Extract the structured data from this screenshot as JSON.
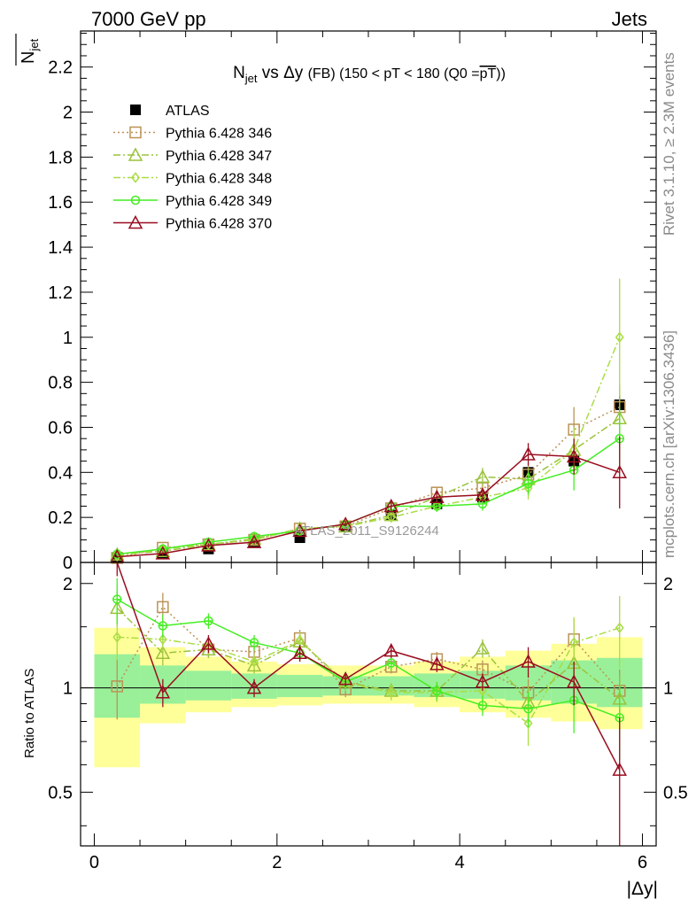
{
  "header": {
    "left": "7000 GeV pp",
    "right": "Jets"
  },
  "side_labels": {
    "rivet": "Rivet 3.1.10, ≥ 2.3M events",
    "mcplots": "mcplots.cern.ch [arXiv:1306.3436]"
  },
  "watermark": "ATLAS_2011_S9126244",
  "chart_data": [
    {
      "type": "scatter",
      "panel": "main",
      "title": {
        "prefix": "N",
        "prefix_sub": "jet",
        "middle": " vs Δy ",
        "tag": "(FB)",
        "rest": " (150 < pT < 180 (Q0 =",
        "overline": "pT",
        "close": "))"
      },
      "ylabel": "N",
      "ylabel_sub": "jet",
      "xlim": [
        -0.15,
        6.15
      ],
      "ylim": [
        0,
        2.36
      ],
      "yticks": [
        {
          "v": 0,
          "label": "0"
        },
        {
          "v": 0.2,
          "label": "0.2"
        },
        {
          "v": 0.4,
          "label": "0.4"
        },
        {
          "v": 0.6,
          "label": "0.6"
        },
        {
          "v": 0.8,
          "label": "0.8"
        },
        {
          "v": 1.0,
          "label": "1"
        },
        {
          "v": 1.2,
          "label": "1.2"
        },
        {
          "v": 1.4,
          "label": "1.4"
        },
        {
          "v": 1.6,
          "label": "1.6"
        },
        {
          "v": 1.8,
          "label": "1.8"
        },
        {
          "v": 2.0,
          "label": "2"
        },
        {
          "v": 2.2,
          "label": "2.2"
        }
      ],
      "legend_position": "top-left",
      "x": [
        0.25,
        0.75,
        1.25,
        1.75,
        2.25,
        2.75,
        3.25,
        3.75,
        4.25,
        4.75,
        5.25,
        5.75
      ],
      "series": [
        {
          "name": "ATLAS",
          "color": "#000000",
          "marker": "filled-square",
          "line": "none",
          "values": [
            0.02,
            0.04,
            0.06,
            0.09,
            0.11,
            0.16,
            0.21,
            0.26,
            0.29,
            0.4,
            0.45,
            0.7
          ],
          "errors": [
            0.003,
            0.004,
            0.005,
            0.006,
            0.008,
            0.01,
            0.012,
            0.015,
            0.02,
            0.025,
            0.03,
            0.05
          ]
        },
        {
          "name": "Pythia 6.428 346",
          "color": "#bb9355",
          "marker": "open-square",
          "line": "dotted",
          "values": [
            0.02,
            0.065,
            0.08,
            0.1,
            0.15,
            0.16,
            0.24,
            0.31,
            0.33,
            0.39,
            0.59,
            0.69
          ],
          "errors": [
            0.005,
            0.01,
            0.01,
            0.01,
            0.015,
            0.015,
            0.02,
            0.025,
            0.03,
            0.05,
            0.1,
            0.1
          ]
        },
        {
          "name": "Pythia 6.428 347",
          "color": "#9bc33b",
          "marker": "open-triangle",
          "line": "dashdot",
          "values": [
            0.035,
            0.05,
            0.08,
            0.105,
            0.15,
            0.16,
            0.21,
            0.29,
            0.38,
            0.37,
            0.5,
            0.64
          ],
          "errors": [
            0.005,
            0.01,
            0.01,
            0.01,
            0.015,
            0.015,
            0.02,
            0.025,
            0.04,
            0.05,
            0.08,
            0.12
          ]
        },
        {
          "name": "Pythia 6.428 348",
          "color": "#aadd44",
          "marker": "open-diamond",
          "line": "dashdot",
          "values": [
            0.028,
            0.06,
            0.08,
            0.1,
            0.15,
            0.16,
            0.2,
            0.25,
            0.29,
            0.33,
            0.5,
            1.0
          ],
          "errors": [
            0.005,
            0.01,
            0.01,
            0.01,
            0.015,
            0.015,
            0.02,
            0.025,
            0.03,
            0.05,
            0.1,
            0.26
          ]
        },
        {
          "name": "Pythia 6.428 349",
          "color": "#44ee22",
          "marker": "open-circle-cross",
          "line": "solid",
          "values": [
            0.037,
            0.06,
            0.09,
            0.115,
            0.14,
            0.17,
            0.25,
            0.25,
            0.26,
            0.35,
            0.41,
            0.55
          ],
          "errors": [
            0.005,
            0.01,
            0.01,
            0.01,
            0.015,
            0.015,
            0.02,
            0.025,
            0.03,
            0.05,
            0.09,
            0.14
          ]
        },
        {
          "name": "Pythia 6.428 370",
          "color": "#990d1f",
          "marker": "open-triangle",
          "line": "solid",
          "values": [
            0.025,
            0.04,
            0.075,
            0.09,
            0.14,
            0.17,
            0.25,
            0.29,
            0.3,
            0.48,
            0.47,
            0.4
          ],
          "errors": [
            0.005,
            0.01,
            0.01,
            0.01,
            0.015,
            0.015,
            0.02,
            0.025,
            0.03,
            0.05,
            0.08,
            0.16
          ]
        }
      ]
    },
    {
      "type": "scatter",
      "panel": "ratio",
      "ylabel": "Ratio to ATLAS",
      "xlabel": "|Δy|",
      "xlim": [
        -0.15,
        6.15
      ],
      "ylim": [
        0.35,
        2.3
      ],
      "log_y": true,
      "yticks": [
        {
          "v": 0.5,
          "label": "0.5"
        },
        {
          "v": 1,
          "label": "1"
        },
        {
          "v": 2,
          "label": "2"
        }
      ],
      "xticks": [
        {
          "v": 0,
          "label": "0"
        },
        {
          "v": 2,
          "label": "2"
        },
        {
          "v": 4,
          "label": "4"
        },
        {
          "v": 6,
          "label": "6"
        }
      ],
      "bands": {
        "x_edges": [
          0,
          0.5,
          1.0,
          1.5,
          2.0,
          2.5,
          3.0,
          3.5,
          4.0,
          4.5,
          5.0,
          5.5,
          6.0
        ],
        "inner_color": "#99f099",
        "outer_color": "#ffff99",
        "inner": [
          [
            0.82,
            1.25
          ],
          [
            0.9,
            1.16
          ],
          [
            0.92,
            1.12
          ],
          [
            0.93,
            1.1
          ],
          [
            0.94,
            1.09
          ],
          [
            0.95,
            1.08
          ],
          [
            0.95,
            1.08
          ],
          [
            0.94,
            1.1
          ],
          [
            0.93,
            1.12
          ],
          [
            0.92,
            1.16
          ],
          [
            0.9,
            1.2
          ],
          [
            0.88,
            1.22
          ]
        ],
        "outer": [
          [
            0.59,
            1.49
          ],
          [
            0.79,
            1.31
          ],
          [
            0.85,
            1.23
          ],
          [
            0.88,
            1.19
          ],
          [
            0.89,
            1.17
          ],
          [
            0.9,
            1.16
          ],
          [
            0.9,
            1.16
          ],
          [
            0.88,
            1.19
          ],
          [
            0.85,
            1.23
          ],
          [
            0.82,
            1.28
          ],
          [
            0.8,
            1.34
          ],
          [
            0.76,
            1.4
          ]
        ]
      },
      "x": [
        0.25,
        0.75,
        1.25,
        1.75,
        2.25,
        2.75,
        3.25,
        3.75,
        4.25,
        4.75,
        5.25,
        5.75
      ],
      "series": [
        {
          "name": "Pythia 6.428 346",
          "color": "#bb9355",
          "marker": "open-square",
          "line": "dotted",
          "values": [
            1.01,
            1.71,
            1.29,
            1.27,
            1.39,
            0.99,
            1.15,
            1.21,
            1.13,
            0.97,
            1.38,
            0.98
          ],
          "errors": [
            0.2,
            0.17,
            0.07,
            0.06,
            0.08,
            0.05,
            0.05,
            0.06,
            0.07,
            0.09,
            0.2,
            0.15
          ]
        },
        {
          "name": "Pythia 6.428 347",
          "color": "#9bc33b",
          "marker": "open-triangle",
          "line": "dashdot",
          "values": [
            1.7,
            1.26,
            1.29,
            1.16,
            1.36,
            1.04,
            0.98,
            0.98,
            1.3,
            0.91,
            1.18,
            0.93
          ],
          "errors": [
            0.2,
            0.1,
            0.07,
            0.06,
            0.08,
            0.05,
            0.05,
            0.06,
            0.08,
            0.1,
            0.2,
            0.15
          ]
        },
        {
          "name": "Pythia 6.428 348",
          "color": "#aadd44",
          "marker": "open-diamond",
          "line": "dashdot",
          "values": [
            1.4,
            1.38,
            1.32,
            1.19,
            1.37,
            1.03,
            0.97,
            0.97,
            0.98,
            0.79,
            1.35,
            1.49
          ],
          "errors": [
            0.2,
            0.1,
            0.07,
            0.06,
            0.08,
            0.05,
            0.05,
            0.06,
            0.07,
            0.11,
            0.25,
            0.35
          ]
        },
        {
          "name": "Pythia 6.428 349",
          "color": "#44ee22",
          "marker": "open-circle-cross",
          "line": "solid",
          "values": [
            1.8,
            1.51,
            1.56,
            1.35,
            1.26,
            1.04,
            1.18,
            0.98,
            0.89,
            0.87,
            0.92,
            0.82
          ],
          "errors": [
            0.27,
            0.12,
            0.08,
            0.07,
            0.07,
            0.05,
            0.06,
            0.06,
            0.06,
            0.1,
            0.18,
            0.2
          ]
        },
        {
          "name": "Pythia 6.428 370",
          "color": "#990d1f",
          "marker": "open-triangle",
          "line": "solid",
          "values": [
            2.4,
            0.97,
            1.34,
            1.0,
            1.26,
            1.06,
            1.28,
            1.17,
            1.04,
            1.19,
            1.04,
            0.58
          ],
          "errors": [
            0.3,
            0.09,
            0.08,
            0.06,
            0.07,
            0.05,
            0.06,
            0.06,
            0.06,
            0.12,
            0.15,
            0.24
          ]
        }
      ]
    }
  ]
}
